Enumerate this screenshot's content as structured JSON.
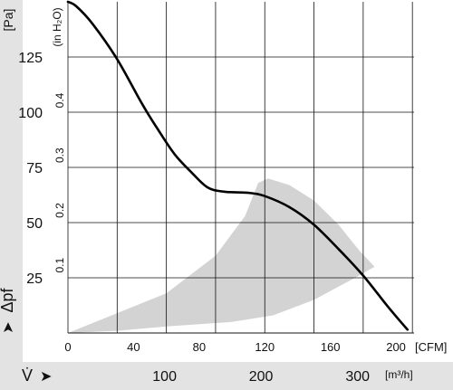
{
  "chart_data": {
    "type": "line",
    "title": "",
    "colors": {
      "curve": "#000000",
      "region": "#d3d3d3",
      "band": "#e3e3e3",
      "grid": "#111111"
    },
    "axes": {
      "x_cfm": {
        "unit": "[CFM]",
        "range": [
          0,
          211
        ],
        "ticks": [
          0,
          40,
          80,
          120,
          160,
          200
        ],
        "grid_lines": [
          0,
          30,
          60,
          90,
          120,
          150,
          180,
          210
        ]
      },
      "x_m3h": {
        "unit": "[m³/h]",
        "ticks": [
          100,
          200,
          300
        ],
        "tick_cfm_positions": [
          58.9,
          117.7,
          176.6
        ]
      },
      "y_pa": {
        "unit": "[Pa]",
        "range": [
          0,
          150
        ],
        "ticks": [
          25,
          50,
          75,
          100,
          125
        ],
        "grid_lines": [
          25,
          50,
          75,
          100,
          125
        ]
      },
      "y_inh2o": {
        "unit": "(in H₂O)",
        "ticks": [
          "0.1",
          "0.2",
          "0.3",
          "0.4"
        ],
        "tick_pa_positions": [
          24.9,
          49.8,
          74.7,
          99.6
        ]
      },
      "x_symbol": "V̇",
      "y_symbol": "Δpf",
      "arrow": "➤"
    },
    "series": [
      {
        "x": [
          0,
          5,
          15,
          30,
          45,
          55,
          65,
          75,
          85,
          95,
          110,
          120,
          135,
          150,
          165,
          180,
          195,
          207
        ],
        "y": [
          150,
          148,
          140,
          124,
          104,
          92,
          81,
          73,
          66,
          64,
          63.5,
          62,
          57,
          49,
          38,
          26,
          12,
          1.5
        ]
      }
    ],
    "operating_region": {
      "x": [
        0,
        60,
        90,
        108,
        116,
        122,
        135,
        150,
        165,
        178,
        187,
        175,
        150,
        125,
        100,
        60,
        30,
        0
      ],
      "y": [
        0,
        18,
        35,
        53,
        68,
        70,
        67,
        60,
        49,
        37,
        30,
        25,
        15,
        8,
        5,
        3,
        1,
        0
      ]
    }
  }
}
